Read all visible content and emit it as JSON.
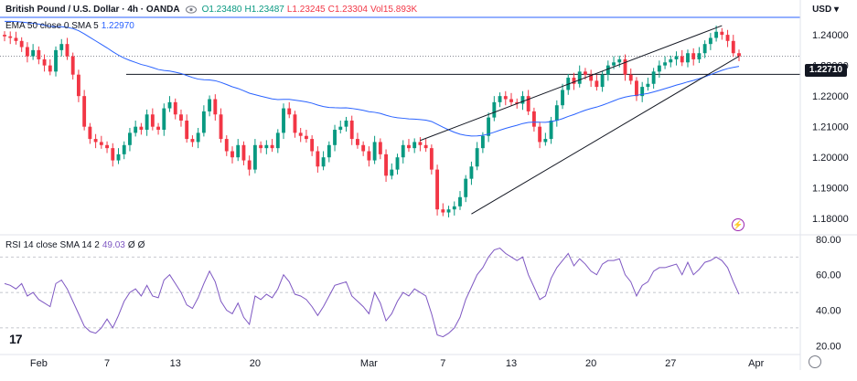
{
  "header": {
    "symbol": "British Pound / U.S. Dollar · 4h · OANDA",
    "ohlc": {
      "o": "O1.23480",
      "h": "H1.23487",
      "l": "L1.23245",
      "c": "C1.23304"
    },
    "vol": "Vol15.893K",
    "currency": "USD",
    "currency_caret": "▾"
  },
  "ema": {
    "text": "EMA 50 close 0 SMA 5",
    "value": "1.22970"
  },
  "rsi": {
    "text": "RSI 14 close SMA 14 2",
    "value": "49.03",
    "z1": "Ø",
    "z2": "Ø"
  },
  "logo": "17",
  "colors": {
    "up": "#089981",
    "down": "#f23645",
    "ema": "#2962ff",
    "rsi": "#7e57c2",
    "lines": "#131722",
    "lightning": "#9c27b0"
  },
  "chart_data": [
    {
      "type": "candlestick",
      "title": "British Pound / U.S. Dollar",
      "timeframe": "4h",
      "y_range": [
        1.175,
        1.246
      ],
      "yticks": [
        1.18,
        1.19,
        1.2,
        1.21,
        1.22,
        1.23,
        1.24
      ],
      "ytick_labels": [
        "1.18000",
        "1.19000",
        "1.20000",
        "1.21000",
        "1.22000",
        "1.23000",
        "1.24000"
      ],
      "xticks": [
        {
          "label": "Feb",
          "slot": 6
        },
        {
          "label": "7",
          "slot": 18
        },
        {
          "label": "13",
          "slot": 30
        },
        {
          "label": "20",
          "slot": 44
        },
        {
          "label": "Mar",
          "slot": 64
        },
        {
          "label": "7",
          "slot": 77
        },
        {
          "label": "13",
          "slot": 89
        },
        {
          "label": "20",
          "slot": 103
        },
        {
          "label": "27",
          "slot": 117
        },
        {
          "label": "Apr",
          "slot": 132
        }
      ],
      "horizontal_line": {
        "value": 1.2271,
        "label": "1.22710"
      },
      "series": [
        {
          "name": "close",
          "values": [
            1.2395,
            1.239,
            1.238,
            1.236,
            1.233,
            1.235,
            1.232,
            1.23,
            1.228,
            1.235,
            1.237,
            1.233,
            1.227,
            1.22,
            1.21,
            1.206,
            1.205,
            1.204,
            1.203,
            1.199,
            1.201,
            1.204,
            1.208,
            1.21,
            1.209,
            1.214,
            1.21,
            1.209,
            1.216,
            1.218,
            1.214,
            1.212,
            1.206,
            1.205,
            1.208,
            1.215,
            1.219,
            1.214,
            1.206,
            1.202,
            1.2,
            1.204,
            1.199,
            1.196,
            1.204,
            1.203,
            1.204,
            1.203,
            1.208,
            1.216,
            1.214,
            1.208,
            1.207,
            1.206,
            1.202,
            1.197,
            1.2,
            1.204,
            1.209,
            1.21,
            1.212,
            1.206,
            1.204,
            1.202,
            1.199,
            1.205,
            1.201,
            1.194,
            1.196,
            1.2,
            1.204,
            1.203,
            1.205,
            1.204,
            1.203,
            1.196,
            1.183,
            1.182,
            1.183,
            1.184,
            1.187,
            1.193,
            1.197,
            1.203,
            1.207,
            1.213,
            1.218,
            1.22,
            1.219,
            1.218,
            1.2175,
            1.22,
            1.215,
            1.21,
            1.205,
            1.206,
            1.212,
            1.217,
            1.222,
            1.226,
            1.224,
            1.228,
            1.227,
            1.225,
            1.223,
            1.227,
            1.23,
            1.231,
            1.232,
            1.227,
            1.225,
            1.22,
            1.223,
            1.224,
            1.228,
            1.23,
            1.231,
            1.232,
            1.233,
            1.231,
            1.234,
            1.232,
            1.234,
            1.237,
            1.239,
            1.241,
            1.24,
            1.238,
            1.234,
            1.233
          ]
        },
        {
          "name": "EMA 50",
          "value": 1.2297
        }
      ],
      "trendlines": [
        {
          "from": {
            "slot": 82,
            "value": 1.1815
          },
          "to": {
            "slot": 129,
            "value": 1.233
          }
        },
        {
          "from": {
            "slot": 73,
            "value": 1.2055
          },
          "to": {
            "slot": 126,
            "value": 1.243
          }
        }
      ]
    },
    {
      "type": "line",
      "title": "RSI 14",
      "y_range": [
        15,
        82
      ],
      "yticks": [
        20,
        40,
        60,
        80
      ],
      "ytick_labels": [
        "20.00",
        "40.00",
        "60.00",
        "80.00"
      ],
      "bands": [
        70,
        50,
        30
      ],
      "series": [
        {
          "name": "RSI 14",
          "values": [
            55,
            54,
            52,
            55,
            48,
            50,
            46,
            44,
            42,
            55,
            57,
            52,
            45,
            38,
            31,
            28,
            27,
            30,
            35,
            30,
            37,
            45,
            50,
            52,
            48,
            54,
            48,
            47,
            57,
            60,
            55,
            50,
            43,
            41,
            47,
            55,
            62,
            56,
            45,
            40,
            38,
            44,
            36,
            32,
            48,
            46,
            49,
            47,
            52,
            60,
            56,
            49,
            48,
            46,
            42,
            37,
            42,
            48,
            54,
            55,
            56,
            48,
            45,
            42,
            38,
            50,
            44,
            34,
            38,
            45,
            50,
            48,
            52,
            50,
            48,
            38,
            26,
            25,
            27,
            30,
            36,
            46,
            53,
            60,
            64,
            70,
            74,
            75,
            72,
            70,
            68,
            70,
            60,
            53,
            46,
            48,
            58,
            64,
            68,
            72,
            65,
            69,
            66,
            62,
            60,
            66,
            68,
            68,
            69,
            60,
            56,
            48,
            54,
            56,
            62,
            64,
            64,
            65,
            66,
            60,
            67,
            60,
            63,
            67,
            68,
            70,
            68,
            64,
            56,
            49
          ]
        }
      ]
    }
  ]
}
